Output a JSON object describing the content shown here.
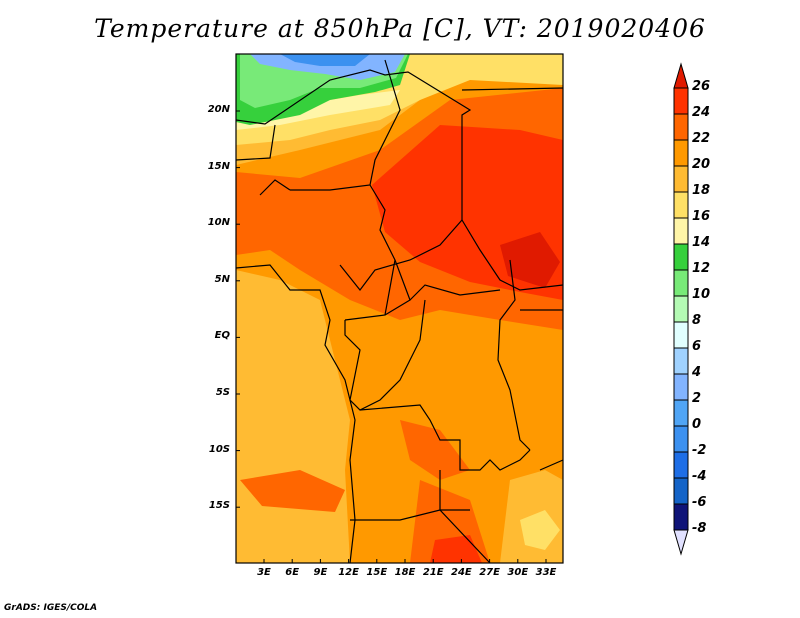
{
  "title": "Temperature at 850hPa [C], VT: 2019020406",
  "credit": "GrADS: IGES/COLA",
  "lat_labels": [
    "20N",
    "15N",
    "10N",
    "5N",
    "EQ",
    "5S",
    "10S",
    "15S"
  ],
  "lon_labels": [
    "3E",
    "6E",
    "9E",
    "12E",
    "15E",
    "18E",
    "21E",
    "24E",
    "27E",
    "30E",
    "33E"
  ],
  "colorbar": {
    "labels": [
      "26",
      "24",
      "22",
      "20",
      "18",
      "16",
      "14",
      "12",
      "10",
      "8",
      "6",
      "4",
      "2",
      "0",
      "-2",
      "-4",
      "-6",
      "-8"
    ],
    "over_color": "#e01a00",
    "under_color": "#e1e1ff",
    "colors": [
      "#ff3300",
      "#ff6600",
      "#ff9900",
      "#ffbb33",
      "#ffe066",
      "#fff5a8",
      "#36d03c",
      "#78ea78",
      "#b4fab4",
      "#e1ffff",
      "#a0d2ff",
      "#82b4ff",
      "#50a5f5",
      "#3c91f0",
      "#1e6ee6",
      "#1464c8",
      "#0f1478"
    ]
  }
}
